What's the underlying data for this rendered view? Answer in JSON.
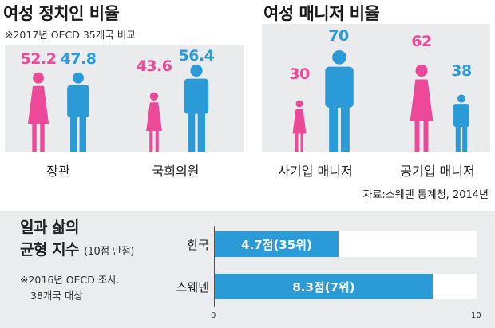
{
  "left": {
    "title": "여성 정치인 비율",
    "note": "※2017년 OECD 35개국 비교",
    "groups": [
      {
        "label": "장관",
        "female": "52.2",
        "male": "47.8"
      },
      {
        "label": "국회의원",
        "female": "43.6",
        "male": "56.4"
      }
    ]
  },
  "right": {
    "title": "여성 매니저 비율",
    "groups": [
      {
        "label": "사기업 매니저",
        "female": "30",
        "male": "70"
      },
      {
        "label": "공기업 매니저",
        "female": "62",
        "male": "38"
      }
    ]
  },
  "source": "자료:스웨덴 통계청, 2014년",
  "bottom": {
    "title_line1": "일과 삶의",
    "title_line2": "균형 지수",
    "subtitle": "(10점 만점)",
    "note_line1": "※2016년 OECD 조사.",
    "note_line2": "38개국 대상"
  },
  "colors": {
    "female": "#ec4a98",
    "male": "#2a9bd7"
  },
  "chart_data": [
    {
      "type": "bar",
      "title": "여성 정치인 비율",
      "categories": [
        "장관",
        "국회의원"
      ],
      "series": [
        {
          "values": [
            52.2,
            43.6
          ]
        },
        {
          "values": [
            47.8,
            56.4
          ]
        }
      ]
    },
    {
      "type": "bar",
      "title": "여성 매니저 비율",
      "categories": [
        "사기업 매니저",
        "공기업 매니저"
      ],
      "series": [
        {
          "values": [
            30,
            62
          ]
        },
        {
          "values": [
            70,
            38
          ]
        }
      ]
    },
    {
      "type": "bar",
      "title": "일과 삶의 균형 지수",
      "categories": [
        "한국",
        "스웨덴"
      ],
      "values": [
        4.7,
        8.3
      ],
      "data_labels": [
        "4.7점(35위)",
        "8.3점(7위)"
      ],
      "xlim": [
        0,
        10
      ],
      "x_ticks": [
        "0",
        "10"
      ]
    }
  ]
}
